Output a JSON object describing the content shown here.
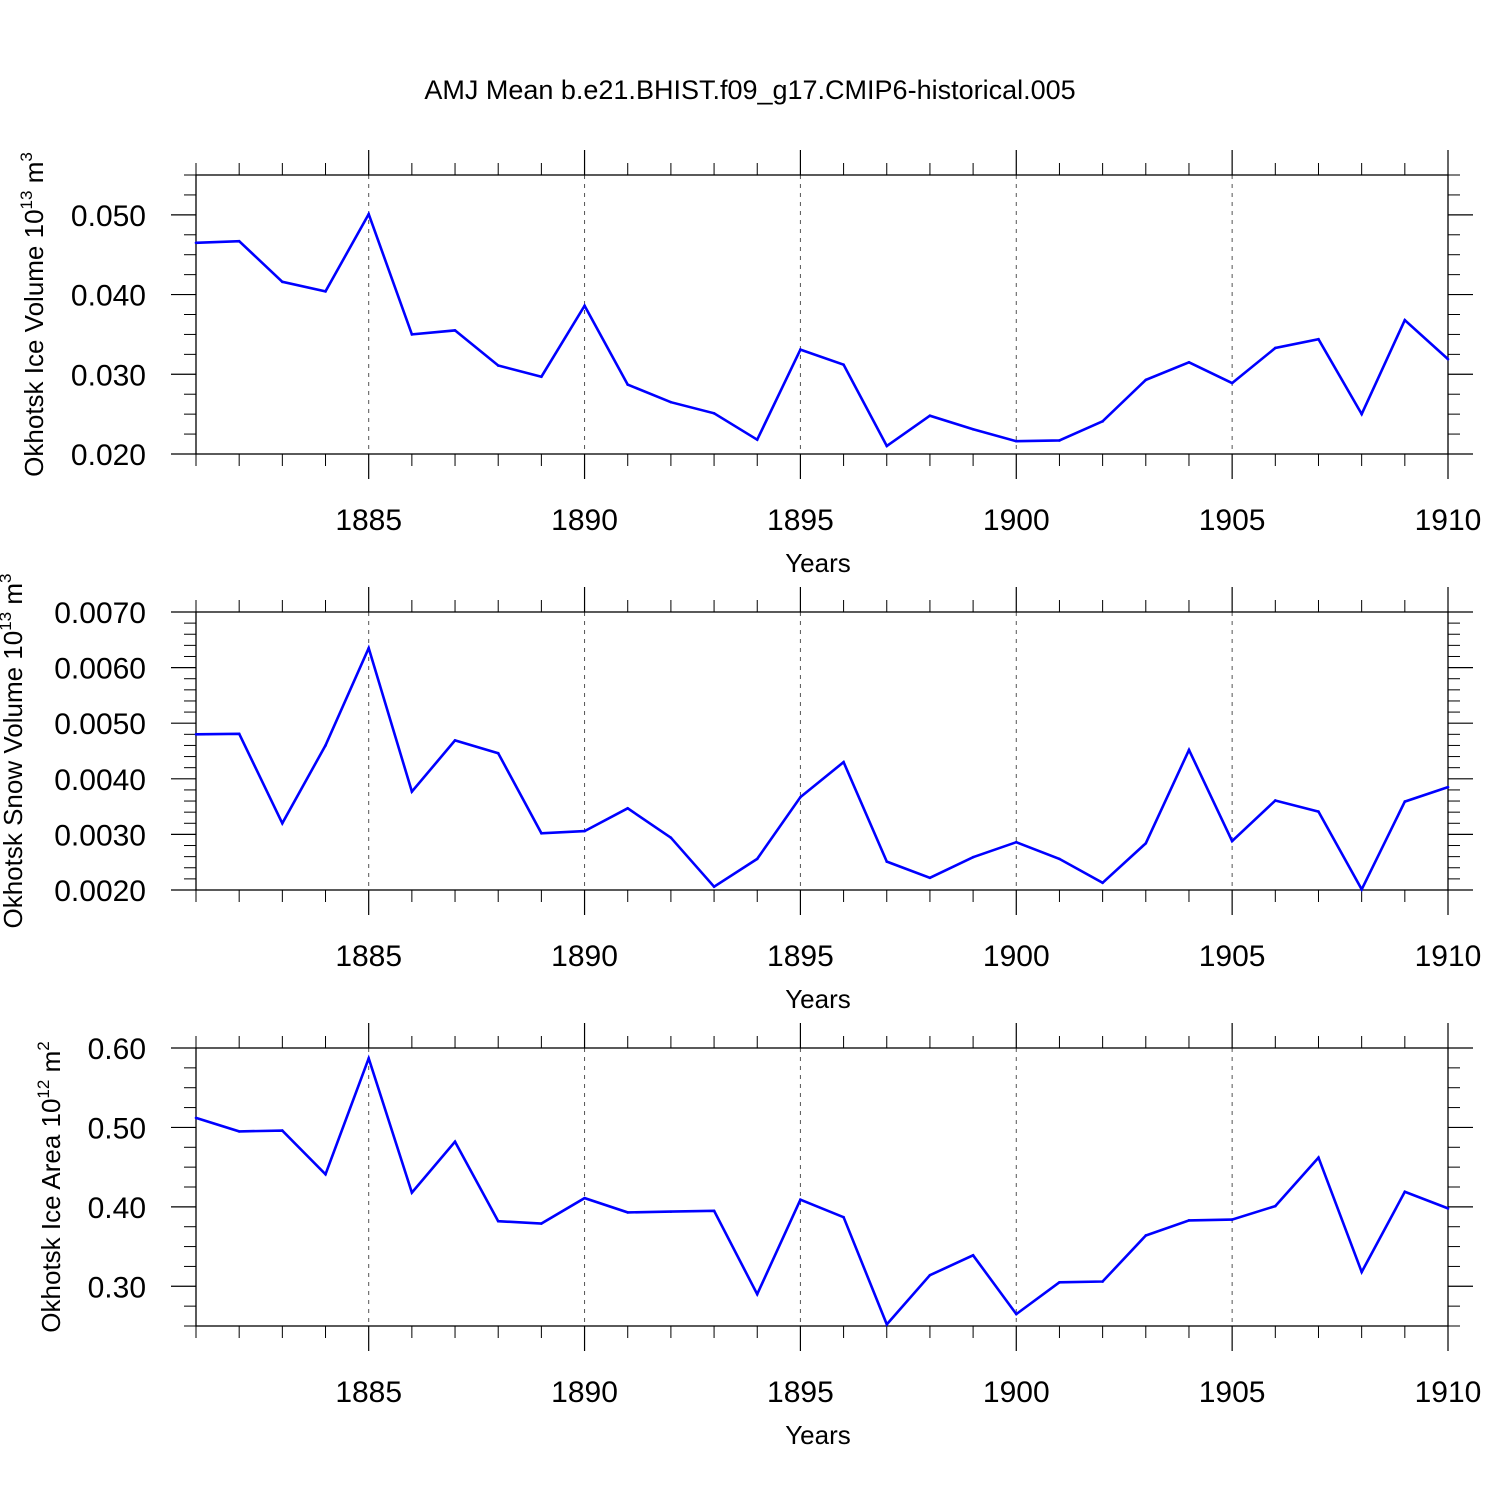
{
  "title": "AMJ Mean b.e21.BHIST.f09_g17.CMIP6-historical.005",
  "line_color": "#0000ff",
  "chart_data": [
    {
      "type": "line",
      "name": "ice-volume",
      "ylabel": {
        "text": "Okhotsk Ice Volume 10",
        "exp": "13",
        "unit": " m",
        "unit_exp": "3"
      },
      "xlabel": "Years",
      "xlim": [
        1881,
        1910
      ],
      "ylim": [
        0.02,
        0.055
      ],
      "yticks": [
        0.02,
        0.03,
        0.04,
        0.05
      ],
      "ytick_labels": [
        "0.020",
        "0.030",
        "0.040",
        "0.050"
      ],
      "yminor_step": 0.0025,
      "xticks": [
        1885,
        1890,
        1895,
        1900,
        1905,
        1910
      ],
      "xtick_labels": [
        "1885",
        "1890",
        "1895",
        "1900",
        "1905",
        "1910"
      ],
      "x": [
        1881,
        1882,
        1883,
        1884,
        1885,
        1886,
        1887,
        1888,
        1889,
        1890,
        1891,
        1892,
        1893,
        1894,
        1895,
        1896,
        1897,
        1898,
        1899,
        1900,
        1901,
        1902,
        1903,
        1904,
        1905,
        1906,
        1907,
        1908,
        1909,
        1910
      ],
      "values": [
        0.0465,
        0.0467,
        0.0416,
        0.0404,
        0.0501,
        0.035,
        0.0355,
        0.0311,
        0.0297,
        0.0386,
        0.0287,
        0.0265,
        0.0251,
        0.0218,
        0.0331,
        0.0312,
        0.021,
        0.0248,
        0.0231,
        0.0216,
        0.0217,
        0.0241,
        0.0293,
        0.0315,
        0.0289,
        0.0333,
        0.0344,
        0.025,
        0.0368,
        0.0319
      ]
    },
    {
      "type": "line",
      "name": "snow-volume",
      "ylabel": {
        "text": "Okhotsk Snow Volume 10",
        "exp": "13",
        "unit": " m",
        "unit_exp": "3"
      },
      "xlabel": "Years",
      "xlim": [
        1881,
        1910
      ],
      "ylim": [
        0.002,
        0.007
      ],
      "yticks": [
        0.002,
        0.003,
        0.004,
        0.005,
        0.006,
        0.007
      ],
      "ytick_labels": [
        "0.0020",
        "0.0030",
        "0.0040",
        "0.0050",
        "0.0060",
        "0.0070"
      ],
      "yminor_step": 0.0002,
      "xticks": [
        1885,
        1890,
        1895,
        1900,
        1905,
        1910
      ],
      "xtick_labels": [
        "1885",
        "1890",
        "1895",
        "1900",
        "1905",
        "1910"
      ],
      "x": [
        1881,
        1882,
        1883,
        1884,
        1885,
        1886,
        1887,
        1888,
        1889,
        1890,
        1891,
        1892,
        1893,
        1894,
        1895,
        1896,
        1897,
        1898,
        1899,
        1900,
        1901,
        1902,
        1903,
        1904,
        1905,
        1906,
        1907,
        1908,
        1909,
        1910
      ],
      "values": [
        0.0048,
        0.00481,
        0.0032,
        0.0046,
        0.00635,
        0.00377,
        0.00469,
        0.00446,
        0.00302,
        0.00306,
        0.00347,
        0.00294,
        0.00206,
        0.00256,
        0.00367,
        0.0043,
        0.00251,
        0.00222,
        0.00259,
        0.00286,
        0.00256,
        0.00213,
        0.00284,
        0.00452,
        0.00288,
        0.00361,
        0.00341,
        0.00201,
        0.00359,
        0.00385
      ]
    },
    {
      "type": "line",
      "name": "ice-area",
      "ylabel": {
        "text": "Okhotsk Ice Area 10",
        "exp": "12",
        "unit": " m",
        "unit_exp": "2"
      },
      "xlabel": "Years",
      "xlim": [
        1881,
        1910
      ],
      "ylim": [
        0.25,
        0.6
      ],
      "yticks": [
        0.3,
        0.4,
        0.5,
        0.6
      ],
      "ytick_labels": [
        "0.30",
        "0.40",
        "0.50",
        "0.60"
      ],
      "yminor_step": 0.025,
      "xticks": [
        1885,
        1890,
        1895,
        1900,
        1905,
        1910
      ],
      "xtick_labels": [
        "1885",
        "1890",
        "1895",
        "1900",
        "1905",
        "1910"
      ],
      "x": [
        1881,
        1882,
        1883,
        1884,
        1885,
        1886,
        1887,
        1888,
        1889,
        1890,
        1891,
        1892,
        1893,
        1894,
        1895,
        1896,
        1897,
        1898,
        1899,
        1900,
        1901,
        1902,
        1903,
        1904,
        1905,
        1906,
        1907,
        1908,
        1909,
        1910
      ],
      "values": [
        0.512,
        0.495,
        0.496,
        0.441,
        0.587,
        0.418,
        0.482,
        0.382,
        0.379,
        0.411,
        0.393,
        0.394,
        0.395,
        0.29,
        0.409,
        0.387,
        0.252,
        0.314,
        0.339,
        0.265,
        0.305,
        0.306,
        0.364,
        0.383,
        0.384,
        0.401,
        0.462,
        0.318,
        0.419,
        0.398
      ]
    }
  ]
}
